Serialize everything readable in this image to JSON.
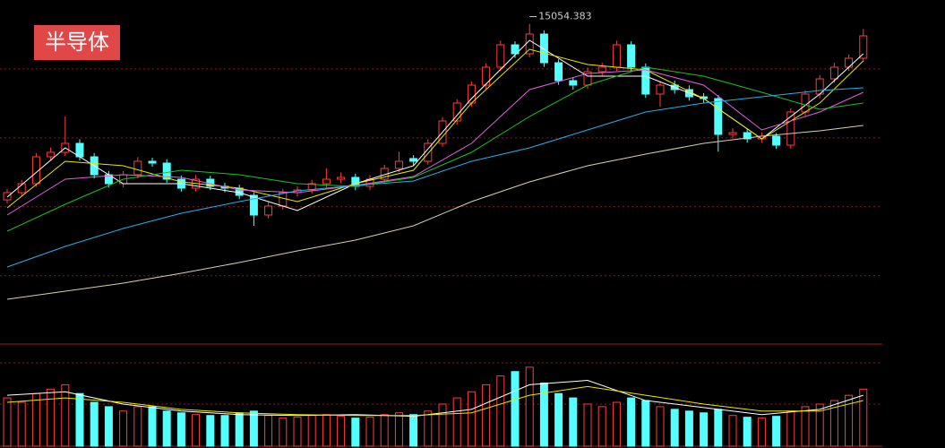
{
  "chart_data": {
    "type": "candlestick",
    "title": "半导体",
    "ylim": [
      10460,
      15400
    ],
    "yticks": [
      14400,
      13400,
      12400,
      11400
    ],
    "grid": true,
    "up_color": "#ff3c3c",
    "down_color": "#54ffff",
    "open": [
      12500,
      12605,
      12735,
      13125,
      13190,
      13320,
      13125,
      12865,
      12735,
      12865,
      13060,
      13034,
      12800,
      12670,
      12800,
      12696,
      12670,
      12566,
      12280,
      12410,
      12605,
      12644,
      12735,
      12800,
      12826,
      12696,
      12800,
      12956,
      13100,
      13060,
      13320,
      13645,
      13905,
      14165,
      14425,
      14750,
      14620,
      14906,
      14490,
      14230,
      14165,
      14360,
      14425,
      14750,
      14425,
      14035,
      14165,
      14100,
      13996,
      13970,
      13450,
      13476,
      13385,
      13424,
      13294,
      13775,
      14035,
      14256,
      14425,
      14555
    ],
    "close": [
      12605,
      12735,
      13125,
      13190,
      13320,
      13125,
      12865,
      12735,
      12865,
      13060,
      13034,
      12800,
      12670,
      12800,
      12696,
      12670,
      12566,
      12280,
      12410,
      12605,
      12644,
      12735,
      12800,
      12826,
      12696,
      12800,
      12956,
      13060,
      13060,
      13320,
      13645,
      13905,
      14165,
      14425,
      14750,
      14620,
      14906,
      14490,
      14230,
      14165,
      14360,
      14425,
      14750,
      14425,
      14035,
      14165,
      14100,
      13996,
      13970,
      13450,
      13476,
      13385,
      13424,
      13294,
      13775,
      14035,
      14256,
      14425,
      14555,
      14880
    ],
    "high": [
      12660,
      12790,
      13180,
      13260,
      13710,
      13380,
      13180,
      12920,
      12920,
      13120,
      13110,
      13090,
      12850,
      12860,
      12850,
      12750,
      12720,
      12610,
      12470,
      12660,
      12700,
      12790,
      12960,
      12900,
      12880,
      12860,
      13010,
      13200,
      13150,
      13380,
      13700,
      13960,
      14220,
      14480,
      14810,
      14800,
      15054.383,
      14960,
      14540,
      14280,
      14420,
      14490,
      14810,
      14800,
      14480,
      14220,
      14230,
      14160,
      14050,
      14020,
      13540,
      13530,
      13480,
      13470,
      13830,
      14090,
      14310,
      14490,
      14610,
      14980
    ],
    "low": [
      12450,
      12560,
      12690,
      13070,
      13140,
      13070,
      12810,
      12680,
      12680,
      12810,
      12980,
      12750,
      12620,
      12620,
      12640,
      12610,
      12510,
      12124,
      12230,
      12360,
      12550,
      12590,
      12680,
      12740,
      12640,
      12640,
      12750,
      12900,
      13000,
      13010,
      13270,
      13590,
      13850,
      14110,
      14370,
      14560,
      14570,
      14430,
      14170,
      14100,
      14110,
      14300,
      14370,
      14370,
      13980,
      13850,
      14040,
      13940,
      13910,
      13200,
      13390,
      13330,
      13330,
      13240,
      13240,
      13720,
      13980,
      14200,
      14370,
      14500
    ],
    "ma": [
      {
        "color": "#ffffff",
        "x": [
          0,
          4,
          8,
          12,
          16,
          20,
          24,
          28,
          32,
          36,
          40,
          44,
          48,
          52,
          56,
          59
        ],
        "values": [
          12540,
          13255,
          12735,
          12735,
          12605,
          12345,
          12735,
          12995,
          13970,
          14815,
          14295,
          14295,
          13970,
          13385,
          14035,
          14620
        ]
      },
      {
        "color": "#e8e800",
        "x": [
          0,
          4,
          8,
          12,
          16,
          20,
          24,
          28,
          32,
          36,
          40,
          44,
          48,
          52,
          56,
          59
        ],
        "values": [
          12384,
          13060,
          12995,
          12761,
          12670,
          12475,
          12735,
          12930,
          13905,
          14685,
          14464,
          14386,
          13970,
          13385,
          13905,
          14516
        ]
      },
      {
        "color": "#e060e0",
        "x": [
          0,
          4,
          8,
          12,
          16,
          20,
          24,
          28,
          32,
          36,
          40,
          44,
          48,
          52,
          56,
          59
        ],
        "values": [
          12280,
          12800,
          12865,
          12826,
          12644,
          12605,
          12709,
          12839,
          13320,
          14100,
          14334,
          14386,
          14165,
          13515,
          13775,
          14061
        ]
      },
      {
        "color": "#20c020",
        "x": [
          0,
          4,
          8,
          12,
          16,
          20,
          24,
          28,
          32,
          36,
          40,
          44,
          48,
          52,
          56,
          59
        ],
        "values": [
          12046,
          12436,
          12800,
          12930,
          12865,
          12735,
          12696,
          12826,
          13190,
          13710,
          14165,
          14425,
          14295,
          14061,
          13814,
          13905
        ]
      },
      {
        "color": "#28b0e8",
        "x": [
          0,
          4,
          8,
          12,
          16,
          20,
          24,
          28,
          32,
          36,
          40,
          44,
          48,
          52,
          56,
          59
        ],
        "values": [
          11526,
          11825,
          12085,
          12306,
          12475,
          12631,
          12709,
          12774,
          13060,
          13255,
          13515,
          13775,
          13905,
          13996,
          14087,
          14126
        ]
      },
      {
        "color": "#d8d0b0",
        "x": [
          0,
          4,
          8,
          12,
          16,
          20,
          24,
          28,
          32,
          36,
          40,
          44,
          48,
          52,
          56,
          59
        ],
        "values": [
          11058,
          11175,
          11292,
          11435,
          11591,
          11760,
          11916,
          12124,
          12475,
          12761,
          12995,
          13164,
          13320,
          13424,
          13502,
          13580
        ]
      }
    ],
    "volume": {
      "ylim": [
        0,
        100
      ],
      "values": [
        55,
        50,
        60,
        65,
        70,
        60,
        50,
        45,
        40,
        45,
        45,
        40,
        38,
        36,
        35,
        35,
        38,
        40,
        35,
        32,
        33,
        35,
        36,
        34,
        32,
        33,
        36,
        38,
        36,
        40,
        48,
        55,
        62,
        70,
        80,
        85,
        90,
        72,
        60,
        55,
        48,
        45,
        50,
        55,
        52,
        45,
        42,
        40,
        38,
        42,
        35,
        33,
        32,
        34,
        40,
        45,
        48,
        52,
        58,
        65
      ],
      "ma": [
        {
          "color": "#ffffff",
          "x": [
            0,
            4,
            8,
            12,
            16,
            20,
            24,
            28,
            32,
            36,
            40,
            44,
            48,
            52,
            56,
            59
          ],
          "values": [
            58,
            62,
            48,
            40,
            36,
            35,
            36,
            34,
            42,
            70,
            75,
            52,
            44,
            36,
            42,
            58
          ]
        },
        {
          "color": "#e8e800",
          "x": [
            0,
            4,
            8,
            12,
            16,
            20,
            24,
            28,
            32,
            36,
            40,
            44,
            48,
            52,
            56,
            59
          ],
          "values": [
            50,
            55,
            50,
            42,
            38,
            36,
            35,
            35,
            38,
            58,
            68,
            58,
            48,
            40,
            40,
            52
          ]
        }
      ]
    }
  }
}
